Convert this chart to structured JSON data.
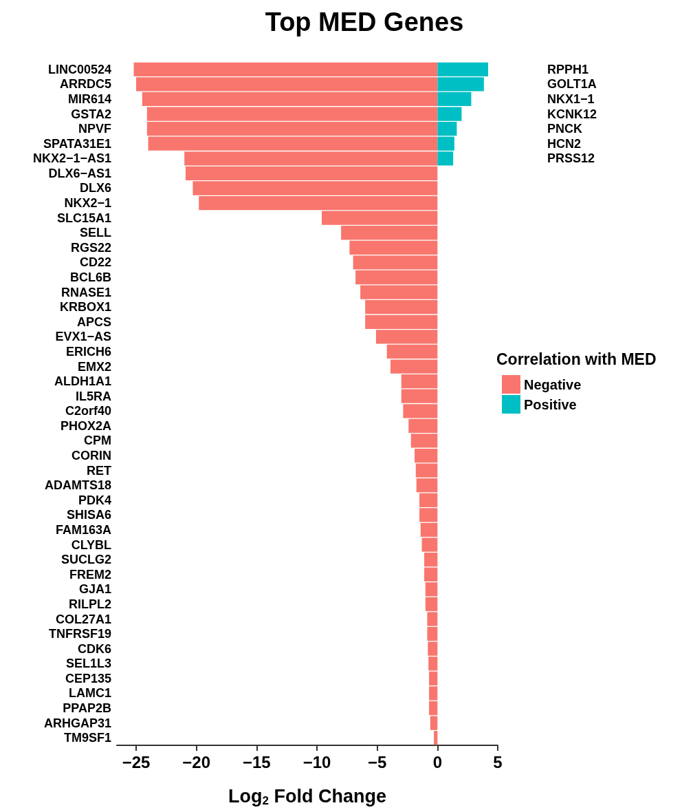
{
  "chart_data": {
    "type": "bar",
    "orientation": "horizontal",
    "title": "Top MED Genes",
    "xlabel": "Log$_{2}$ Fold Change",
    "legend_title": "Correlation with MED",
    "legend": "right",
    "grid": false,
    "categories": [
      "LINC00524",
      "ARRDC5",
      "MIR614",
      "GSTA2",
      "NPVF",
      "SPATA31E1",
      "NKX2−1−AS1",
      "DLX6−AS1",
      "DLX6",
      "NKX2−1",
      "SLC15A1",
      "SELL",
      "RGS22",
      "CD22",
      "BCL6B",
      "RNASE1",
      "KRBOX1",
      "APCS",
      "EVX1−AS",
      "ERICH6",
      "EMX2",
      "ALDH1A1",
      "IL5RA",
      "C2orf40",
      "PHOX2A",
      "CPM",
      "CORIN",
      "RET",
      "ADAMTS18",
      "PDK4",
      "SHISA6",
      "FAM163A",
      "CLYBL",
      "SUCLG2",
      "FREM2",
      "GJA1",
      "RILPL2",
      "COL27A1",
      "TNFRSF19",
      "CDK6",
      "SEL1L3",
      "CEP135",
      "LAMC1",
      "PPAP2B",
      "ARHGAP31",
      "TM9SF1"
    ],
    "y2_categories": [
      "RPPH1",
      "GOLT1A",
      "NKX1−1",
      "KCNK12",
      "PNCK",
      "HCN2",
      "PRSS12",
      null,
      null,
      null,
      null,
      null,
      null,
      null,
      null,
      null,
      null,
      null,
      null,
      null,
      null,
      null,
      null,
      null,
      null,
      null,
      null,
      null,
      null,
      null,
      null,
      null,
      null,
      null,
      null,
      null,
      null,
      null,
      null,
      null,
      null,
      null,
      null,
      null,
      null,
      null
    ],
    "xlim": [
      -26.6,
      5
    ],
    "xticks": [
      {
        "value": -25,
        "label": "−25"
      },
      {
        "value": -20,
        "label": "−20"
      },
      {
        "value": -15,
        "label": "−15"
      },
      {
        "value": -10,
        "label": "−10"
      },
      {
        "value": -5,
        "label": "−5"
      },
      0,
      5
    ],
    "series": [
      {
        "name": "Negative",
        "color": "#f8766d",
        "values": [
          -25.2,
          -25.0,
          -24.5,
          -24.1,
          -24.1,
          -24.0,
          -21.0,
          -20.9,
          -20.3,
          -19.8,
          -9.6,
          -8.0,
          -7.3,
          -7.0,
          -6.8,
          -6.4,
          -6.0,
          -6.0,
          -5.1,
          -4.2,
          -3.9,
          -3.0,
          -3.0,
          -2.85,
          -2.4,
          -2.2,
          -1.9,
          -1.8,
          -1.75,
          -1.5,
          -1.5,
          -1.4,
          -1.3,
          -1.1,
          -1.1,
          -1.0,
          -1.0,
          -0.85,
          -0.85,
          -0.8,
          -0.75,
          -0.7,
          -0.7,
          -0.7,
          -0.6,
          -0.3
        ]
      },
      {
        "name": "Positive",
        "color": "#00bfc4",
        "values": [
          4.2,
          3.85,
          2.8,
          2.0,
          1.6,
          1.4,
          1.3,
          null,
          null,
          null,
          null,
          null,
          null,
          null,
          null,
          null,
          null,
          null,
          null,
          null,
          null,
          null,
          null,
          null,
          null,
          null,
          null,
          null,
          null,
          null,
          null,
          null,
          null,
          null,
          null,
          null,
          null,
          null,
          null,
          null,
          null,
          null,
          null,
          null,
          null,
          null
        ]
      }
    ]
  }
}
